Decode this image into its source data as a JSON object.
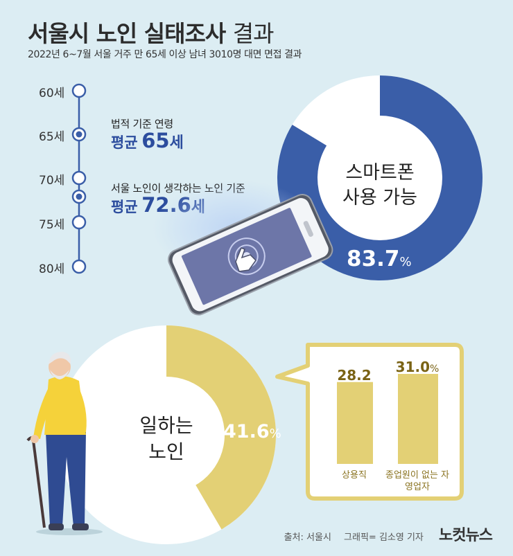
{
  "title_bold": "서울시 노인 실태조사",
  "title_light": "결과",
  "subtitle": "2022년 6~7월 서울 거주 만 65세 이상 남녀 3010명 대면 면접 결과",
  "age_scale": {
    "ticks": [
      "60세",
      "65세",
      "70세",
      "75세",
      "80세"
    ],
    "legal": {
      "label": "법적 기준 연령",
      "prefix": "평균",
      "value": "65",
      "unit": "세"
    },
    "perceived": {
      "label": "서울 노인이 생각하는 노인 기준",
      "prefix": "평균",
      "value": "72.6",
      "unit": "세"
    }
  },
  "smartphone": {
    "label_line1": "스마트폰",
    "label_line2": "사용 가능",
    "value": "83.7",
    "unit": "%"
  },
  "working": {
    "label_line1": "일하는",
    "label_line2": "노인",
    "value": "41.6",
    "unit": "%"
  },
  "colors": {
    "blue": "#3a5ea8",
    "gold": "#e3d075",
    "bg": "#dcedf3",
    "blue_text": "#2c4d9e"
  },
  "chart_data": [
    {
      "type": "pie",
      "title": "스마트폰 사용 가능",
      "values": [
        83.7,
        16.3
      ]
    },
    {
      "type": "pie",
      "title": "일하는 노인",
      "values": [
        41.6,
        58.4
      ]
    },
    {
      "type": "bar",
      "categories": [
        "상용직",
        "종업원이 없는 자영업자"
      ],
      "values": [
        28.2,
        31.0
      ],
      "value_labels": [
        "28.2",
        "31.0"
      ],
      "value_units": [
        "",
        "%"
      ]
    }
  ],
  "footer": {
    "source": "출처: 서울시",
    "graphic": "그래픽= 김소영 기자",
    "logo": "노컷뉴스"
  }
}
